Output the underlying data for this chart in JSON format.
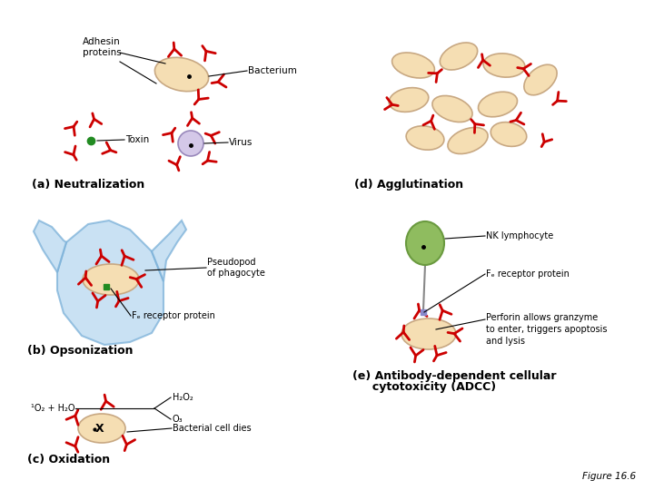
{
  "bg_color": "#ffffff",
  "ab_color": "#cc0000",
  "bact_fill": "#f5deb3",
  "bact_edge": "#c8a882",
  "virus_fill": "#d4c8e8",
  "virus_edge": "#9988bb",
  "toxin_color": "#228B22",
  "phago_fill": "#b8d8f0",
  "phago_edge": "#7ab0d8",
  "nk_fill": "#8fbc5f",
  "nk_edge": "#6a9a3f",
  "fc_color": "#228B22",
  "fc2_color": "#8888cc",
  "label_a": "(a) Neutralization",
  "label_b": "(b) Opsonization",
  "label_c": "(c) Oxidation",
  "label_d": "(d) Agglutination",
  "label_e_line1": "(e) Antibody-dependent cellular",
  "label_e_line2": "     cytotoxicity (ADCC)",
  "figure_label": "Figure 16.6",
  "ann_adhesin": "Adhesin\nproteins",
  "ann_bacterium": "Bacterium",
  "ann_toxin": "Toxin",
  "ann_virus": "Virus",
  "ann_pseudopod": "Pseudopod\nof phagocyte",
  "ann_fc_b": "Fₑ receptor protein",
  "ann_nk": "NK lymphocyte",
  "ann_fc_e": "Fₑ receptor protein",
  "ann_perforin": "Perforin allows granzyme\nto enter, triggers apoptosis\nand lysis",
  "ann_h2o2": "H₂O₂",
  "ann_o3": "O₃",
  "ann_1o2": "¹O₂ + H₂O",
  "ann_bacterial_dies": "Bacterial cell dies",
  "label_fontsize": 9,
  "ann_fontsize": 7.5,
  "small_fontsize": 7
}
